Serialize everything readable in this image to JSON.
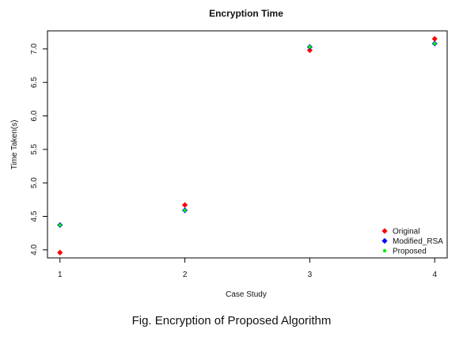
{
  "caption": "Fig. Encryption of Proposed Algorithm",
  "chart_data": {
    "type": "scatter",
    "title": "Encryption Time",
    "xlabel": "Case Study",
    "ylabel": "Time Taken(s)",
    "x": [
      1,
      2,
      3,
      4
    ],
    "xlim": [
      0.9,
      4.1
    ],
    "ylim": [
      3.88,
      7.27
    ],
    "xticks": [
      1,
      2,
      3,
      4
    ],
    "yticks": [
      "4.0",
      "4.5",
      "5.0",
      "5.5",
      "6.0",
      "6.5",
      "7.0"
    ],
    "legend_position": "bottom-right",
    "series": [
      {
        "name": "Original",
        "color": "#ff0000",
        "marker": "diamond",
        "values": [
          3.96,
          4.67,
          6.98,
          7.15
        ]
      },
      {
        "name": "Modified_RSA",
        "color": "#0000ff",
        "marker": "diamond",
        "values": [
          4.37,
          4.59,
          7.03,
          7.08
        ]
      },
      {
        "name": "Proposed",
        "color": "#00ee00",
        "marker": "circle",
        "values": [
          4.37,
          4.59,
          7.03,
          7.08
        ]
      }
    ]
  }
}
